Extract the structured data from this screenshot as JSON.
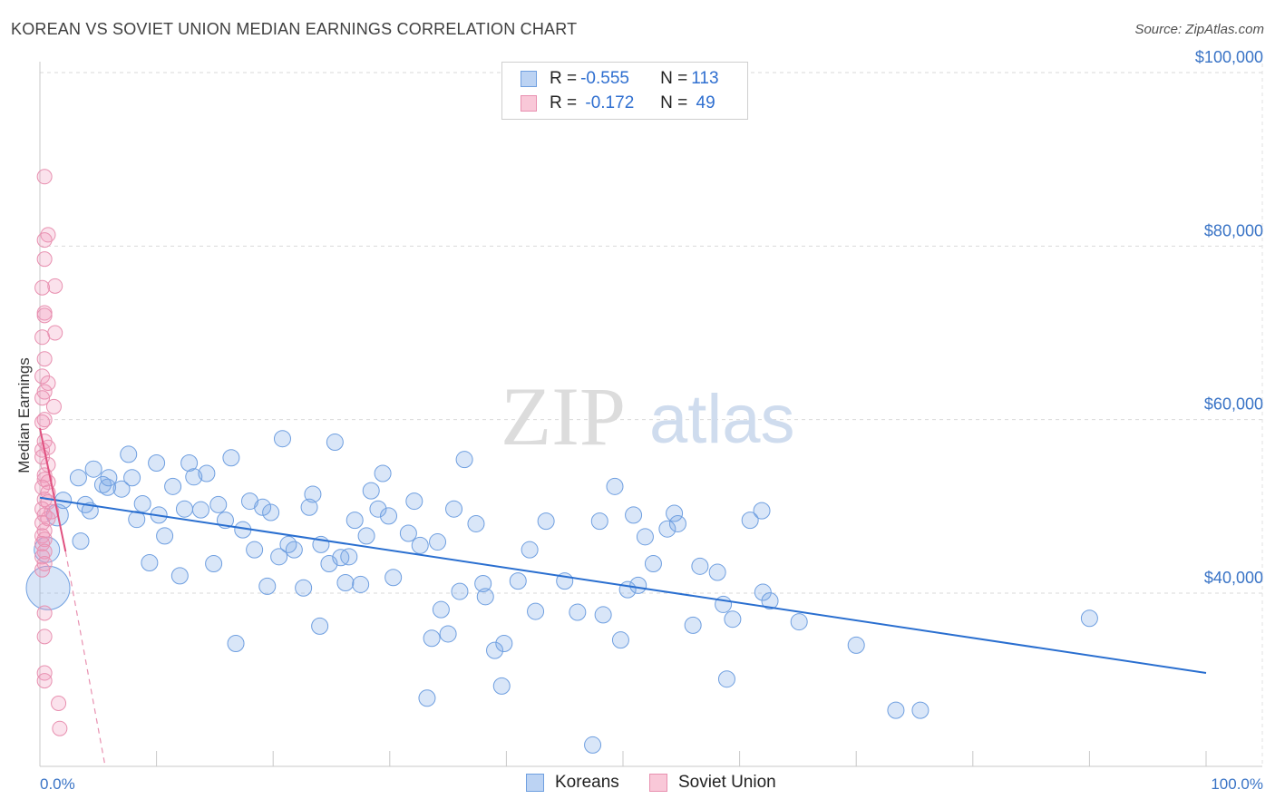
{
  "title": "KOREAN VS SOVIET UNION MEDIAN EARNINGS CORRELATION CHART",
  "source": "Source: ZipAtlas.com",
  "legend": {
    "rows": [
      {
        "r_label": "R = ",
        "r_value": "-0.555",
        "n_label": "N = ",
        "n_value": "113"
      },
      {
        "r_label": "R = ",
        "r_value": " -0.172",
        "n_label": "N = ",
        "n_value": " 49"
      }
    ]
  },
  "watermark": {
    "zip": "ZIP",
    "atlas": "atlas"
  },
  "colors": {
    "koreans": "#5b93e0",
    "soviet": "#e878a0",
    "koreans_line": "#2a6fd0",
    "soviet_line": "#e0507f",
    "tick": "#3a74c6"
  },
  "chart_data": {
    "type": "scatter",
    "title": "KOREAN VS SOVIET UNION MEDIAN EARNINGS CORRELATION CHART",
    "xlabel": "",
    "ylabel": "Median Earnings",
    "xlim": [
      0,
      100
    ],
    "ylim": [
      20000,
      103000
    ],
    "x_tick_labels": [
      "0.0%",
      "100.0%"
    ],
    "y_ticks": [
      {
        "value": 40000,
        "label": "$40,000"
      },
      {
        "value": 60000,
        "label": "$60,000"
      },
      {
        "value": 80000,
        "label": "$80,000"
      },
      {
        "value": 100000,
        "label": "$100,000"
      }
    ],
    "series": [
      {
        "name": "Koreans",
        "r": -0.555,
        "n": 113,
        "trend": {
          "x": [
            0,
            100
          ],
          "y": [
            51000,
            30800
          ]
        },
        "points": [
          [
            0.7,
            40600,
            24
          ],
          [
            0.6,
            45000,
            14
          ],
          [
            1.5,
            49000,
            12
          ],
          [
            2.0,
            50700,
            9
          ],
          [
            3.3,
            53300,
            9
          ],
          [
            3.9,
            50200,
            9
          ],
          [
            3.5,
            46000,
            9
          ],
          [
            4.3,
            49500,
            9
          ],
          [
            4.6,
            54300,
            9
          ],
          [
            5.4,
            52500,
            9
          ],
          [
            5.8,
            52200,
            9
          ],
          [
            5.9,
            53300,
            9
          ],
          [
            7.0,
            52000,
            9
          ],
          [
            7.6,
            56000,
            9
          ],
          [
            7.9,
            53300,
            9
          ],
          [
            8.3,
            48500,
            9
          ],
          [
            8.8,
            50300,
            9
          ],
          [
            9.4,
            43500,
            9
          ],
          [
            10.0,
            55000,
            9
          ],
          [
            10.2,
            49000,
            9
          ],
          [
            10.7,
            46600,
            9
          ],
          [
            11.4,
            52300,
            9
          ],
          [
            12.0,
            42000,
            9
          ],
          [
            12.4,
            49700,
            9
          ],
          [
            12.8,
            55000,
            9
          ],
          [
            13.2,
            53400,
            9
          ],
          [
            13.8,
            49600,
            9
          ],
          [
            14.3,
            53800,
            9
          ],
          [
            14.9,
            43400,
            9
          ],
          [
            15.3,
            50200,
            9
          ],
          [
            15.9,
            48400,
            9
          ],
          [
            16.4,
            55600,
            9
          ],
          [
            16.8,
            34200,
            9
          ],
          [
            17.4,
            47300,
            9
          ],
          [
            18.0,
            50600,
            9
          ],
          [
            18.4,
            45000,
            9
          ],
          [
            19.1,
            49900,
            9
          ],
          [
            19.5,
            40800,
            9
          ],
          [
            19.8,
            49300,
            9
          ],
          [
            20.5,
            44200,
            9
          ],
          [
            20.8,
            57800,
            9
          ],
          [
            21.3,
            45600,
            9
          ],
          [
            21.8,
            45000,
            9
          ],
          [
            22.6,
            40600,
            9
          ],
          [
            23.1,
            49900,
            9
          ],
          [
            23.4,
            51400,
            9
          ],
          [
            24.0,
            36200,
            9
          ],
          [
            24.1,
            45600,
            9
          ],
          [
            24.8,
            43400,
            9
          ],
          [
            25.3,
            57400,
            9
          ],
          [
            25.8,
            44100,
            9
          ],
          [
            26.2,
            41200,
            9
          ],
          [
            26.5,
            44200,
            9
          ],
          [
            27.0,
            48400,
            9
          ],
          [
            27.5,
            41000,
            9
          ],
          [
            28.0,
            46600,
            9
          ],
          [
            28.4,
            51800,
            9
          ],
          [
            29.0,
            49700,
            9
          ],
          [
            29.4,
            53800,
            9
          ],
          [
            29.9,
            48900,
            9
          ],
          [
            30.3,
            41800,
            9
          ],
          [
            31.6,
            46900,
            9
          ],
          [
            32.1,
            50600,
            9
          ],
          [
            32.6,
            45500,
            9
          ],
          [
            33.2,
            27900,
            9
          ],
          [
            33.6,
            34800,
            9
          ],
          [
            34.1,
            45900,
            9
          ],
          [
            34.4,
            38100,
            9
          ],
          [
            35.0,
            35300,
            9
          ],
          [
            35.5,
            49700,
            9
          ],
          [
            36.0,
            40200,
            9
          ],
          [
            36.4,
            55400,
            9
          ],
          [
            37.4,
            48000,
            9
          ],
          [
            38.0,
            41100,
            9
          ],
          [
            38.2,
            39600,
            9
          ],
          [
            39.0,
            33400,
            9
          ],
          [
            39.6,
            29300,
            9
          ],
          [
            39.8,
            34200,
            9
          ],
          [
            41.0,
            41400,
            9
          ],
          [
            42.0,
            45000,
            9
          ],
          [
            42.5,
            37900,
            9
          ],
          [
            43.4,
            48300,
            9
          ],
          [
            45.0,
            41400,
            9
          ],
          [
            46.1,
            37800,
            9
          ],
          [
            47.4,
            22500,
            9
          ],
          [
            48.0,
            48300,
            9
          ],
          [
            48.3,
            37500,
            9
          ],
          [
            49.3,
            52300,
            9
          ],
          [
            49.8,
            34600,
            9
          ],
          [
            50.4,
            40400,
            9
          ],
          [
            50.9,
            49000,
            9
          ],
          [
            51.3,
            40900,
            9
          ],
          [
            51.9,
            46500,
            9
          ],
          [
            52.6,
            43400,
            9
          ],
          [
            53.8,
            47400,
            9
          ],
          [
            54.4,
            49200,
            9
          ],
          [
            54.7,
            48000,
            9
          ],
          [
            56.0,
            36300,
            9
          ],
          [
            56.6,
            43100,
            9
          ],
          [
            58.1,
            42400,
            9
          ],
          [
            58.6,
            38700,
            9
          ],
          [
            58.9,
            30100,
            9
          ],
          [
            59.4,
            37000,
            9
          ],
          [
            60.9,
            48400,
            9
          ],
          [
            61.9,
            49500,
            9
          ],
          [
            62.0,
            40100,
            9
          ],
          [
            62.6,
            39100,
            9
          ],
          [
            65.1,
            36700,
            9
          ],
          [
            70.0,
            34000,
            9
          ],
          [
            73.4,
            26500,
            9
          ],
          [
            75.5,
            26500,
            9
          ],
          [
            90.0,
            37100,
            9
          ]
        ]
      },
      {
        "name": "Soviet Union",
        "r": -0.172,
        "n": 49,
        "trend": {
          "x": [
            0,
            2.2
          ],
          "y": [
            59000,
            44800
          ]
        },
        "trend_dashed": {
          "x": [
            2.2,
            5.6
          ],
          "y": [
            44800,
            20000
          ]
        },
        "points": [
          [
            0.4,
            88000
          ],
          [
            0.7,
            81300
          ],
          [
            0.4,
            80700
          ],
          [
            0.4,
            78500
          ],
          [
            1.3,
            75400
          ],
          [
            0.2,
            75200
          ],
          [
            0.4,
            72300
          ],
          [
            0.4,
            72000
          ],
          [
            1.3,
            70000
          ],
          [
            0.2,
            69500
          ],
          [
            0.4,
            67000
          ],
          [
            0.2,
            65000
          ],
          [
            0.7,
            64200
          ],
          [
            0.4,
            63200
          ],
          [
            0.2,
            62500
          ],
          [
            1.2,
            61500
          ],
          [
            0.4,
            60000
          ],
          [
            0.2,
            59700
          ],
          [
            0.4,
            57500
          ],
          [
            0.7,
            56800
          ],
          [
            0.2,
            56500
          ],
          [
            0.2,
            55700
          ],
          [
            0.7,
            54800
          ],
          [
            0.4,
            53600
          ],
          [
            0.4,
            53100
          ],
          [
            0.7,
            52800
          ],
          [
            0.2,
            52200
          ],
          [
            0.7,
            51600
          ],
          [
            0.4,
            50800
          ],
          [
            0.7,
            50500
          ],
          [
            0.2,
            49700
          ],
          [
            1.0,
            49400
          ],
          [
            0.4,
            49000
          ],
          [
            0.7,
            48600
          ],
          [
            0.2,
            48100
          ],
          [
            0.4,
            47200
          ],
          [
            0.2,
            46600
          ],
          [
            0.4,
            46200
          ],
          [
            0.2,
            45700
          ],
          [
            0.4,
            44800
          ],
          [
            0.2,
            44200
          ],
          [
            0.4,
            43400
          ],
          [
            0.2,
            42700
          ],
          [
            0.4,
            37700
          ],
          [
            0.4,
            35000
          ],
          [
            0.4,
            30800
          ],
          [
            0.4,
            29900
          ],
          [
            1.6,
            27300
          ],
          [
            1.7,
            24400
          ]
        ]
      }
    ]
  },
  "bottom_legend": [
    {
      "label": "Koreans"
    },
    {
      "label": "Soviet Union"
    }
  ]
}
